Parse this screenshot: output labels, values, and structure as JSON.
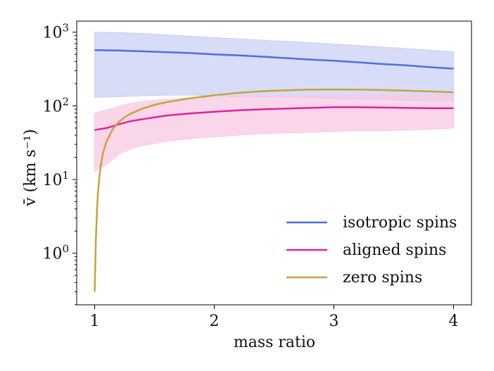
{
  "chart_data": {
    "type": "line",
    "title": "",
    "xlabel": "mass ratio",
    "ylabel": "v̄ (km s⁻¹)",
    "yscale": "log",
    "xlim": [
      0.85,
      4.15
    ],
    "ylim_log10": [
      -0.7,
      3.15
    ],
    "x_ticks": [
      {
        "value": 1,
        "label": "1"
      },
      {
        "value": 2,
        "label": "2"
      },
      {
        "value": 3,
        "label": "3"
      },
      {
        "value": 4,
        "label": "4"
      }
    ],
    "y_ticks": [
      {
        "exp": 0,
        "base": "10",
        "sup": "0"
      },
      {
        "exp": 1,
        "base": "10",
        "sup": "1"
      },
      {
        "exp": 2,
        "base": "10",
        "sup": "2"
      },
      {
        "exp": 3,
        "base": "10",
        "sup": "3"
      }
    ],
    "legend_position": "bottom-right",
    "series": [
      {
        "name": "isotropic spins",
        "color": "#4f6fe0",
        "band_color": "#c9d0f4",
        "x": [
          1.0,
          1.2,
          1.4,
          1.6,
          1.8,
          2.0,
          2.2,
          2.4,
          2.6,
          2.8,
          3.0,
          3.2,
          3.4,
          3.6,
          3.8,
          4.0
        ],
        "y": [
          570,
          565,
          550,
          535,
          520,
          500,
          485,
          465,
          445,
          425,
          410,
          390,
          370,
          355,
          335,
          320
        ],
        "lower": [
          130,
          133,
          137,
          140,
          140,
          138,
          135,
          133,
          130,
          128,
          125,
          123,
          122,
          120,
          118,
          118
        ],
        "upper": [
          1000,
          990,
          960,
          920,
          880,
          845,
          810,
          780,
          750,
          720,
          690,
          660,
          630,
          600,
          570,
          540
        ]
      },
      {
        "name": "aligned spins",
        "color": "#e0239d",
        "band_color": "#f8c8e3",
        "x": [
          1.0,
          1.1,
          1.2,
          1.3,
          1.4,
          1.6,
          1.8,
          2.0,
          2.2,
          2.4,
          2.6,
          2.8,
          3.0,
          3.2,
          3.4,
          3.6,
          3.8,
          4.0
        ],
        "y": [
          47,
          50,
          56,
          62,
          66,
          74,
          79,
          83,
          87,
          90,
          92,
          94,
          96,
          96,
          95,
          94,
          93,
          93
        ],
        "lower": [
          13,
          16,
          22,
          26,
          29,
          33,
          36,
          38,
          40,
          42,
          43,
          44,
          45,
          46,
          46,
          47,
          48,
          50
        ],
        "upper": [
          80,
          88,
          98,
          108,
          115,
          123,
          128,
          132,
          134,
          136,
          137,
          138,
          139,
          140,
          140,
          140,
          140,
          140
        ]
      },
      {
        "name": "zero spins",
        "color": "#c9a23c",
        "x": [
          1.0,
          1.01,
          1.02,
          1.03,
          1.04,
          1.05,
          1.07,
          1.1,
          1.15,
          1.2,
          1.25,
          1.3,
          1.4,
          1.5,
          1.6,
          1.8,
          2.0,
          2.2,
          2.4,
          2.6,
          2.8,
          3.0,
          3.2,
          3.4,
          3.6,
          3.8,
          4.0
        ],
        "y": [
          0.3,
          1.5,
          4.0,
          7.5,
          11,
          15,
          23,
          33,
          48,
          60,
          70,
          78,
          92,
          103,
          112,
          127,
          139,
          150,
          158,
          163,
          166,
          167,
          166,
          164,
          161,
          157,
          153
        ]
      }
    ]
  }
}
